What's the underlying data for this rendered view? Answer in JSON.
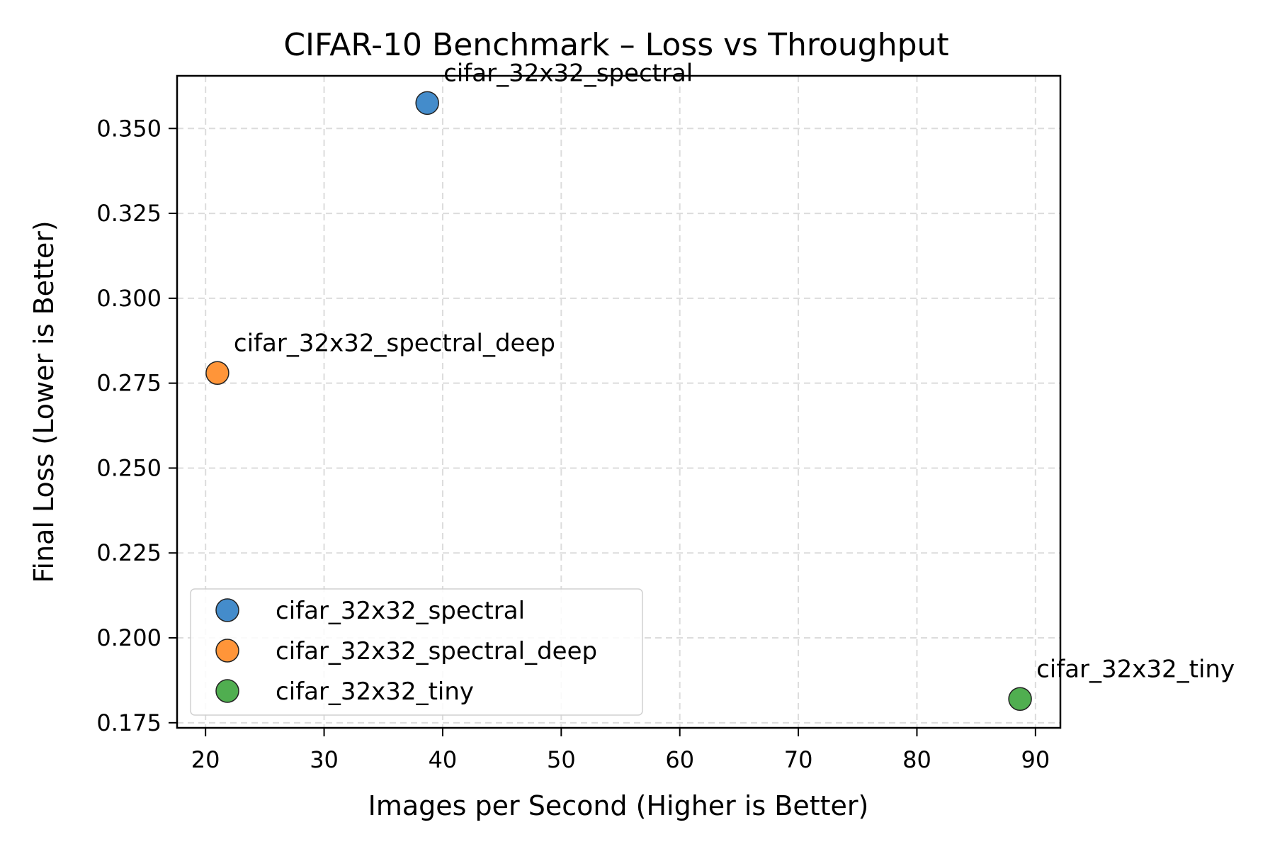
{
  "chart_data": {
    "type": "scatter",
    "title": "CIFAR-10 Benchmark – Loss vs Throughput",
    "xlabel": "Images per Second (Higher is Better)",
    "ylabel": "Final Loss (Lower is Better)",
    "xlim": [
      17.6,
      92.1
    ],
    "ylim": [
      0.1735,
      0.3655
    ],
    "xticks": [
      20,
      30,
      40,
      50,
      60,
      70,
      80,
      90
    ],
    "yticks": [
      0.175,
      0.2,
      0.225,
      0.25,
      0.275,
      0.3,
      0.325,
      0.35
    ],
    "grid": true,
    "legend_position": "lower-left",
    "series": [
      {
        "name": "cifar_32x32_spectral",
        "color": "#3a86c8",
        "x": 38.7,
        "y": 0.3575,
        "label": "cifar_32x32_spectral"
      },
      {
        "name": "cifar_32x32_spectral_deep",
        "color": "#ff8f2e",
        "x": 21.0,
        "y": 0.278,
        "label": "cifar_32x32_spectral_deep"
      },
      {
        "name": "cifar_32x32_tiny",
        "color": "#47aa47",
        "x": 88.7,
        "y": 0.182,
        "label": "cifar_32x32_tiny"
      }
    ]
  }
}
